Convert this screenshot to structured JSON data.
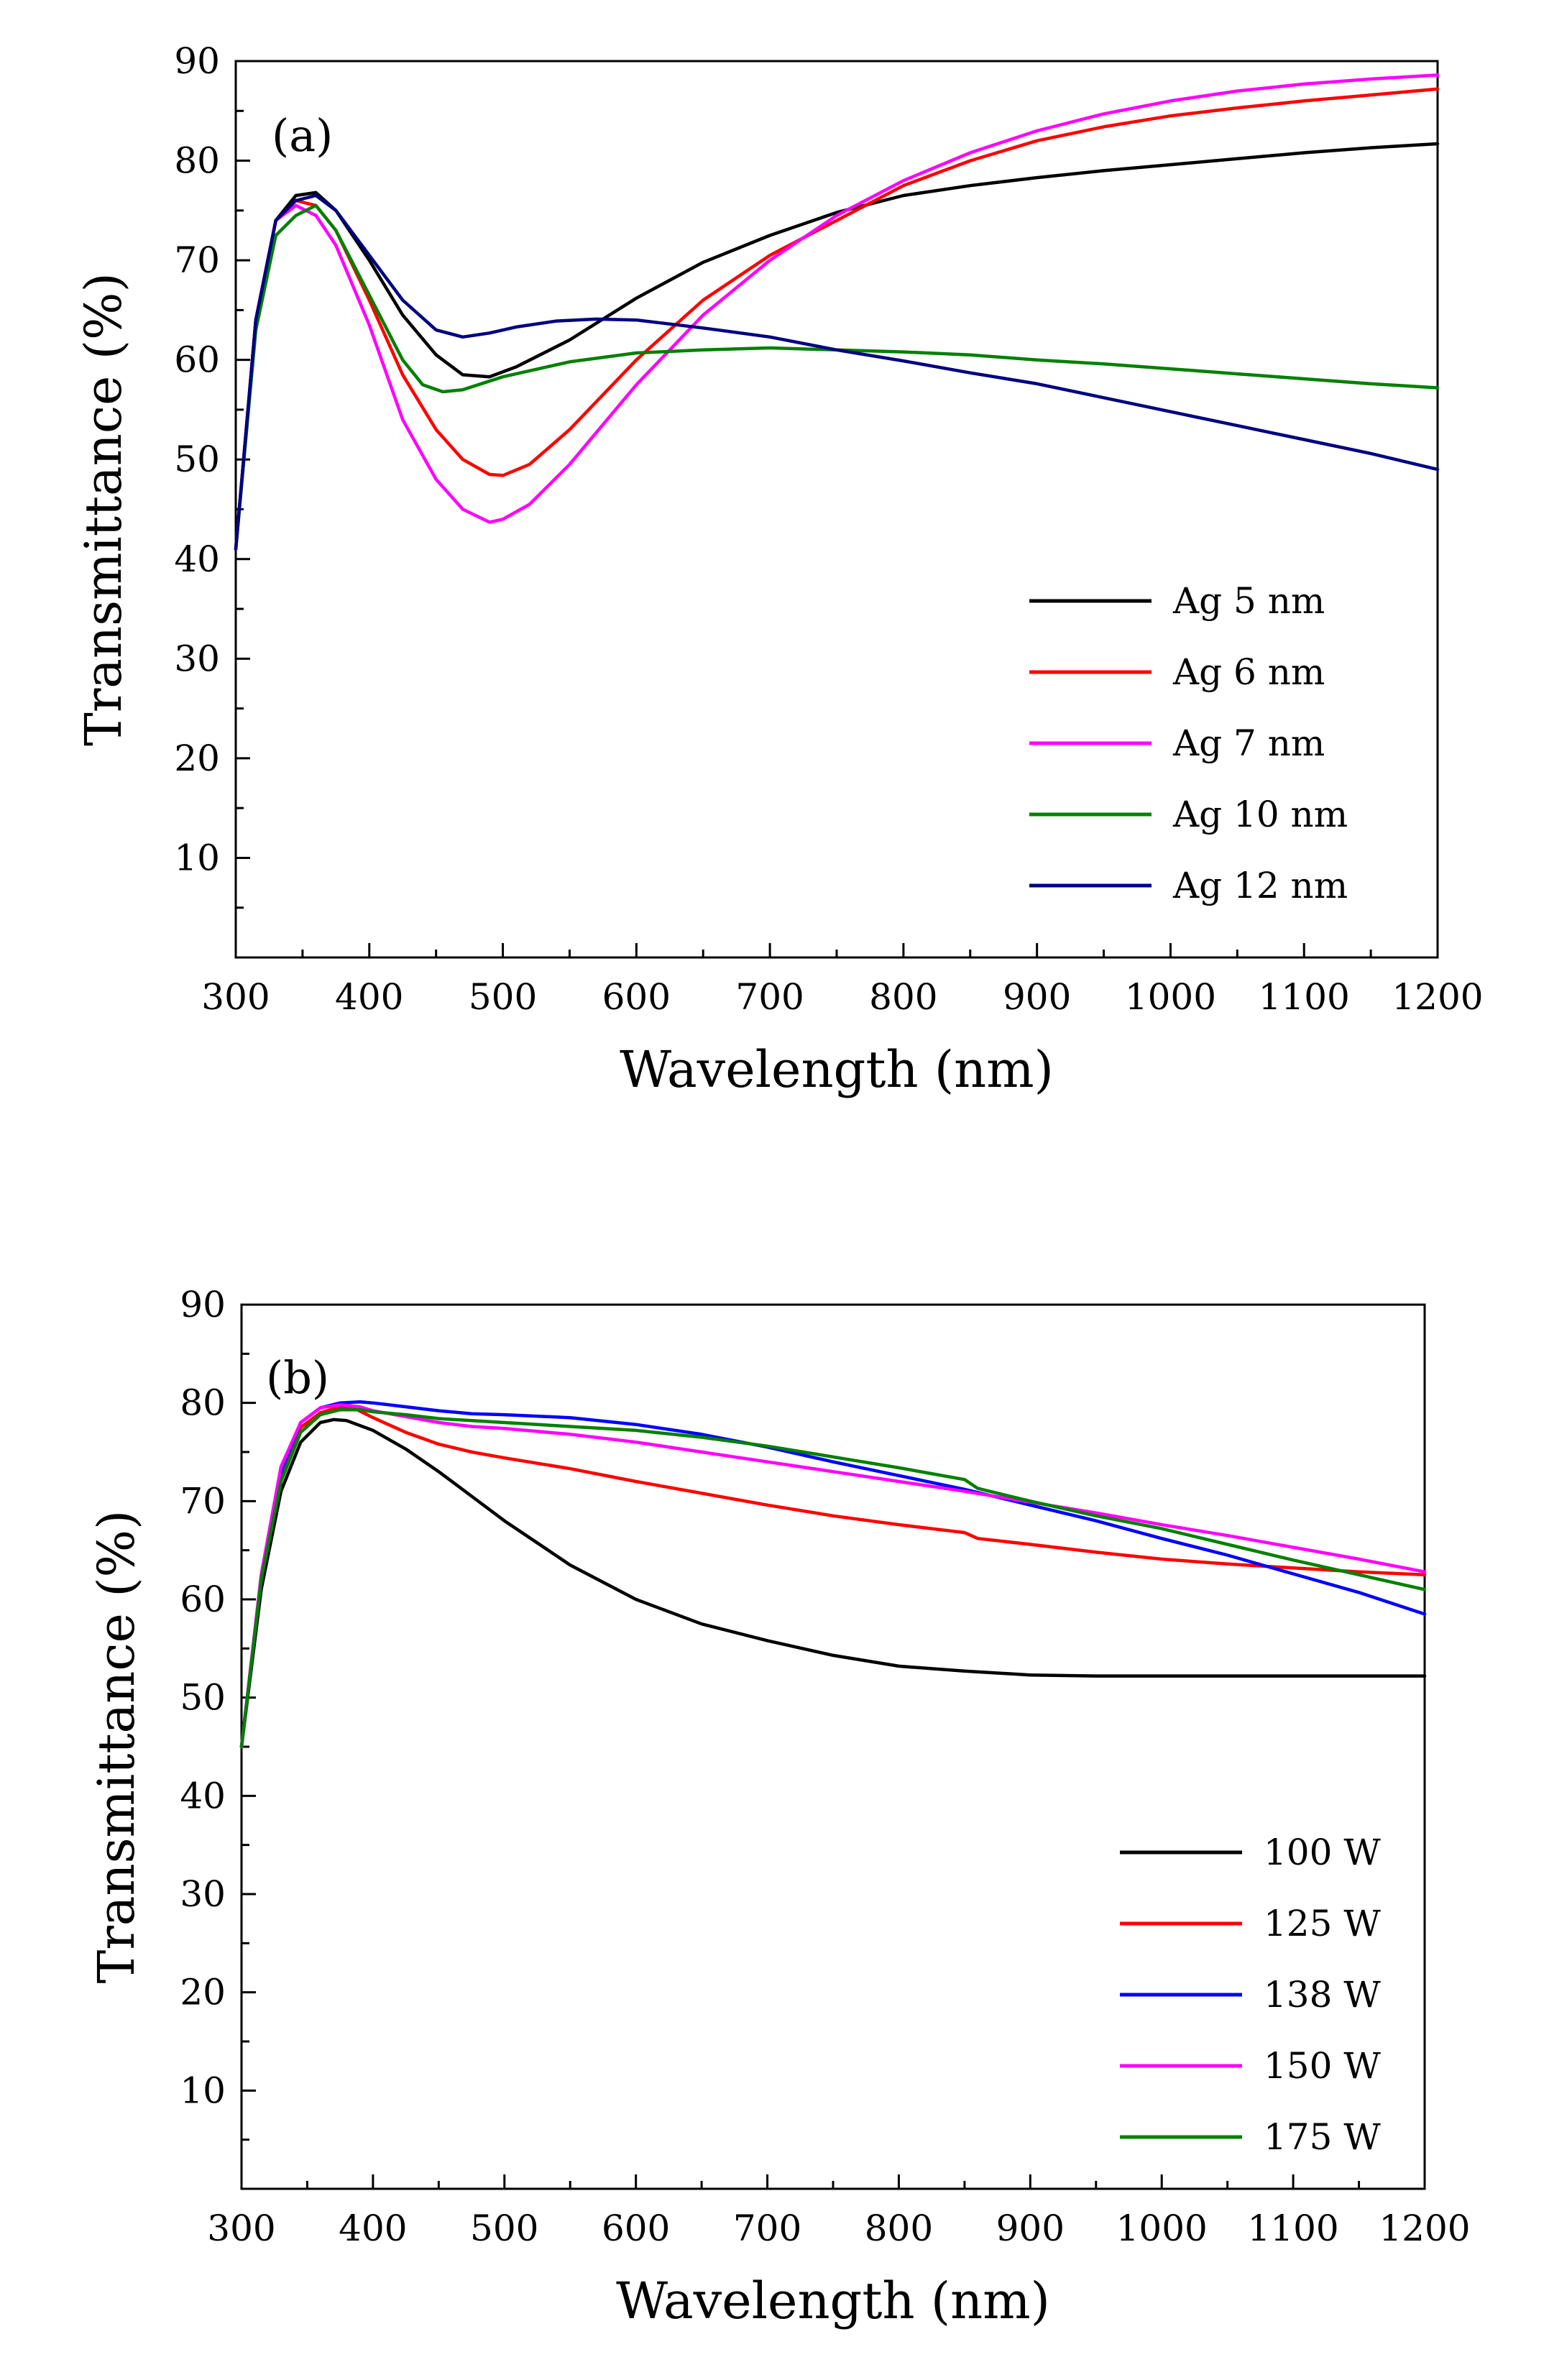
{
  "chart_data": [
    {
      "type": "line",
      "panel_label": "(a)",
      "xlabel": "Wavelength (nm)",
      "ylabel": "Transmittance (%)",
      "xlim": [
        300,
        1200
      ],
      "ylim": [
        0,
        90
      ],
      "x_ticks": [
        300,
        400,
        500,
        600,
        700,
        800,
        900,
        1000,
        1100,
        1200
      ],
      "y_ticks": [
        10,
        20,
        30,
        40,
        50,
        60,
        70,
        80,
        90
      ],
      "legend_position": "bottom-right",
      "grid": false,
      "series": [
        {
          "name": "Ag 5 nm",
          "color": "#000000",
          "x": [
            300,
            315,
            330,
            345,
            360,
            375,
            400,
            425,
            450,
            470,
            490,
            510,
            550,
            600,
            650,
            700,
            750,
            800,
            850,
            900,
            950,
            1000,
            1050,
            1100,
            1150,
            1200
          ],
          "y": [
            41,
            64,
            74,
            76.5,
            76.8,
            75,
            70,
            64.5,
            60.5,
            58.5,
            58.3,
            59.3,
            62,
            66.2,
            69.8,
            72.5,
            74.8,
            76.5,
            77.5,
            78.3,
            79,
            79.6,
            80.2,
            80.8,
            81.3,
            81.7
          ]
        },
        {
          "name": "Ag 6 nm",
          "color": "#ff0000",
          "x": [
            300,
            315,
            330,
            345,
            360,
            375,
            400,
            425,
            450,
            470,
            490,
            500,
            520,
            550,
            600,
            650,
            700,
            750,
            800,
            850,
            900,
            950,
            1000,
            1050,
            1100,
            1150,
            1200
          ],
          "y": [
            41,
            64,
            74,
            76,
            75.5,
            73,
            66,
            58.5,
            53,
            50,
            48.5,
            48.4,
            49.5,
            53,
            60,
            66,
            70.5,
            74,
            77.5,
            80,
            82,
            83.4,
            84.5,
            85.3,
            86,
            86.6,
            87.2
          ]
        },
        {
          "name": "Ag 7 nm",
          "color": "#ff00ff",
          "x": [
            300,
            315,
            330,
            345,
            360,
            375,
            400,
            425,
            450,
            470,
            490,
            500,
            520,
            550,
            600,
            650,
            700,
            750,
            800,
            850,
            900,
            950,
            1000,
            1050,
            1100,
            1150,
            1200
          ],
          "y": [
            41,
            64,
            74,
            75.5,
            74.5,
            71.5,
            63.5,
            54,
            48,
            45,
            43.7,
            44,
            45.5,
            49.5,
            57.5,
            64.5,
            70,
            74.5,
            78,
            80.8,
            83,
            84.7,
            86,
            87,
            87.7,
            88.2,
            88.6
          ]
        },
        {
          "name": "Ag 10 nm",
          "color": "#008000",
          "x": [
            300,
            315,
            330,
            345,
            360,
            375,
            400,
            425,
            440,
            455,
            470,
            500,
            550,
            600,
            650,
            700,
            750,
            800,
            850,
            900,
            950,
            1000,
            1050,
            1100,
            1150,
            1200
          ],
          "y": [
            41,
            63,
            72.5,
            74.5,
            75.5,
            73,
            66.5,
            60,
            57.5,
            56.8,
            57,
            58.3,
            59.8,
            60.7,
            61,
            61.2,
            61,
            60.8,
            60.5,
            60,
            59.6,
            59.1,
            58.6,
            58.1,
            57.6,
            57.2
          ]
        },
        {
          "name": "Ag 12 nm",
          "color": "#000080",
          "x": [
            300,
            315,
            330,
            345,
            360,
            375,
            400,
            425,
            450,
            470,
            490,
            510,
            540,
            570,
            600,
            650,
            700,
            750,
            800,
            850,
            900,
            950,
            1000,
            1050,
            1100,
            1150,
            1200
          ],
          "y": [
            41,
            64,
            74,
            76,
            76.5,
            75,
            70.5,
            66,
            63,
            62.3,
            62.7,
            63.3,
            63.9,
            64.1,
            64,
            63.2,
            62.3,
            61,
            59.9,
            58.7,
            57.6,
            56.2,
            54.8,
            53.4,
            52,
            50.6,
            49
          ]
        }
      ]
    },
    {
      "type": "line",
      "panel_label": "(b)",
      "xlabel": "Wavelength (nm)",
      "ylabel": "Transmittance (%)",
      "xlim": [
        300,
        1200
      ],
      "ylim": [
        0,
        90
      ],
      "x_ticks": [
        300,
        400,
        500,
        600,
        700,
        800,
        900,
        1000,
        1100,
        1200
      ],
      "y_ticks": [
        10,
        20,
        30,
        40,
        50,
        60,
        70,
        80,
        90
      ],
      "legend_position": "bottom-right",
      "grid": false,
      "series": [
        {
          "name": "100 W",
          "color": "#000000",
          "x": [
            300,
            315,
            330,
            345,
            360,
            370,
            380,
            400,
            425,
            450,
            475,
            500,
            550,
            600,
            650,
            700,
            750,
            800,
            850,
            900,
            950,
            1000,
            1050,
            1100,
            1150,
            1200
          ],
          "y": [
            45,
            61,
            71,
            76,
            78,
            78.3,
            78.2,
            77.2,
            75.3,
            73,
            70.5,
            68,
            63.5,
            60,
            57.5,
            55.8,
            54.3,
            53.2,
            52.7,
            52.3,
            52.2,
            52.2,
            52.2,
            52.2,
            52.2,
            52.2
          ]
        },
        {
          "name": "125 W",
          "color": "#ff0000",
          "x": [
            300,
            315,
            330,
            345,
            360,
            375,
            385,
            400,
            425,
            450,
            475,
            500,
            550,
            600,
            650,
            700,
            750,
            800,
            850,
            860,
            900,
            950,
            1000,
            1050,
            1100,
            1150,
            1200
          ],
          "y": [
            45,
            62,
            72.5,
            77.5,
            79,
            79.6,
            79.5,
            78.5,
            77,
            75.8,
            75,
            74.4,
            73.3,
            72,
            70.8,
            69.6,
            68.5,
            67.6,
            66.8,
            66.2,
            65.6,
            64.8,
            64.1,
            63.6,
            63.2,
            62.8,
            62.5
          ]
        },
        {
          "name": "138 W",
          "color": "#0000ff",
          "x": [
            300,
            315,
            330,
            345,
            360,
            375,
            390,
            400,
            425,
            450,
            475,
            500,
            550,
            600,
            650,
            700,
            750,
            800,
            850,
            900,
            950,
            1000,
            1050,
            1100,
            1150,
            1200
          ],
          "y": [
            45,
            62,
            73,
            78,
            79.5,
            80,
            80.1,
            80,
            79.6,
            79.2,
            78.9,
            78.8,
            78.5,
            77.8,
            76.8,
            75.5,
            74,
            72.6,
            71.2,
            69.6,
            68,
            66.2,
            64.5,
            62.6,
            60.7,
            58.5
          ]
        },
        {
          "name": "150 W",
          "color": "#ff00ff",
          "x": [
            300,
            315,
            330,
            345,
            360,
            375,
            390,
            400,
            425,
            450,
            475,
            500,
            550,
            600,
            650,
            700,
            750,
            800,
            850,
            900,
            950,
            1000,
            1050,
            1100,
            1150,
            1200
          ],
          "y": [
            45,
            62.5,
            73.5,
            78,
            79.5,
            79.8,
            79.6,
            79.2,
            78.6,
            78,
            77.6,
            77.4,
            76.8,
            76,
            75,
            74,
            73,
            72,
            71,
            69.9,
            68.8,
            67.6,
            66.5,
            65.3,
            64.1,
            62.8
          ]
        },
        {
          "name": "175 W",
          "color": "#008000",
          "x": [
            300,
            315,
            330,
            345,
            360,
            375,
            390,
            400,
            425,
            450,
            475,
            500,
            550,
            600,
            650,
            700,
            750,
            800,
            850,
            860,
            900,
            950,
            1000,
            1050,
            1100,
            1150,
            1200
          ],
          "y": [
            45,
            62,
            72,
            77,
            78.8,
            79.3,
            79.3,
            79.1,
            78.8,
            78.4,
            78.2,
            78,
            77.6,
            77.2,
            76.5,
            75.6,
            74.5,
            73.4,
            72.2,
            71.3,
            70,
            68.5,
            67.2,
            65.6,
            64,
            62.5,
            61
          ]
        }
      ]
    }
  ]
}
